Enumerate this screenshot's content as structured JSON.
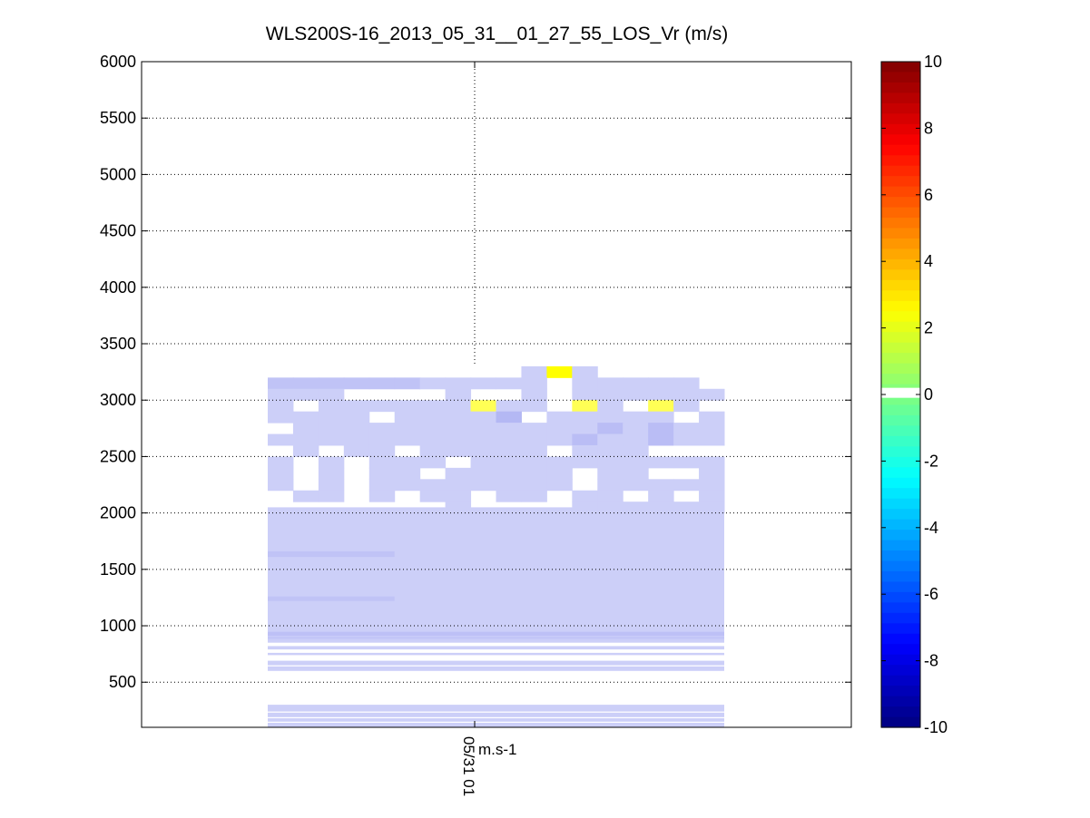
{
  "chart_data": {
    "type": "heatmap",
    "title": "WLS200S-16_2013_05_31__01_27_55_LOS_Vr (m/s)",
    "xlabel": "",
    "ylabel": "",
    "x_tick_label": "05/31 01",
    "unit_label": "m.s-1",
    "ylim": [
      100,
      6000
    ],
    "yticks": [
      500,
      1000,
      1500,
      2000,
      2500,
      3000,
      3500,
      4000,
      4500,
      5000,
      5500,
      6000
    ],
    "grid": true,
    "colorbar": {
      "min": -10,
      "max": 10,
      "ticks": [
        10,
        8,
        6,
        4,
        2,
        0,
        -2,
        -4,
        -6,
        -8,
        -10
      ],
      "colormap": "jet"
    },
    "profile_columns": 18,
    "range_gates": [
      {
        "height": 3250,
        "values": [
          null,
          null,
          null,
          null,
          null,
          null,
          null,
          null,
          null,
          null,
          -0.4,
          1.5,
          -0.4,
          null,
          null,
          null,
          null,
          null
        ]
      },
      {
        "height": 3150,
        "values": [
          -0.8,
          -0.8,
          -0.8,
          -0.8,
          -0.8,
          -0.8,
          -0.4,
          -0.4,
          -0.4,
          -0.4,
          -0.4,
          null,
          -0.4,
          -0.4,
          -0.4,
          -0.4,
          -0.4,
          null
        ]
      },
      {
        "height": 3050,
        "values": [
          -0.4,
          -0.4,
          -0.4,
          null,
          null,
          null,
          null,
          -0.4,
          null,
          null,
          -0.4,
          null,
          -0.4,
          -0.4,
          -0.4,
          -0.4,
          -0.4,
          -0.4
        ]
      },
      {
        "height": 2950,
        "values": [
          -0.4,
          null,
          -0.4,
          -0.4,
          -0.4,
          -0.4,
          -0.4,
          -0.4,
          1.0,
          -0.4,
          -0.4,
          null,
          1.0,
          -0.4,
          null,
          1.0,
          -0.4,
          null
        ]
      },
      {
        "height": 2850,
        "values": [
          -0.4,
          -0.4,
          -0.4,
          -0.4,
          null,
          -0.4,
          -0.4,
          -0.4,
          -0.4,
          -1.2,
          null,
          -0.4,
          -0.4,
          -0.4,
          -0.4,
          -0.4,
          null,
          -0.4
        ]
      },
      {
        "height": 2750,
        "values": [
          null,
          -0.4,
          -0.4,
          -0.4,
          -0.4,
          -0.4,
          -0.4,
          -0.4,
          -0.4,
          -0.4,
          -0.4,
          -0.4,
          -0.4,
          -1.0,
          -0.4,
          -1.0,
          -0.4,
          -0.4
        ]
      },
      {
        "height": 2650,
        "values": [
          -0.4,
          -0.4,
          -0.4,
          -0.4,
          -0.4,
          -0.4,
          -0.4,
          -0.4,
          -0.4,
          -0.4,
          -0.4,
          -0.4,
          -1.0,
          -0.4,
          -0.4,
          -1.0,
          -0.4,
          -0.4
        ]
      },
      {
        "height": 2550,
        "values": [
          null,
          -0.4,
          null,
          -0.4,
          -0.4,
          null,
          -0.4,
          -0.4,
          -0.4,
          -0.4,
          -0.4,
          null,
          -0.4,
          -0.4,
          -0.4,
          null,
          null,
          null
        ]
      },
      {
        "height": 2450,
        "values": [
          -0.4,
          null,
          -0.4,
          null,
          -0.4,
          -0.4,
          -0.4,
          null,
          -0.4,
          -0.4,
          -0.4,
          -0.4,
          -0.4,
          -0.4,
          -0.4,
          -0.4,
          -0.4,
          -0.4
        ]
      },
      {
        "height": 2350,
        "values": [
          -0.4,
          null,
          -0.4,
          null,
          -0.4,
          -0.4,
          null,
          -0.4,
          -0.4,
          -0.4,
          -0.4,
          -0.4,
          null,
          -0.4,
          -0.4,
          null,
          null,
          -0.4
        ]
      },
      {
        "height": 2250,
        "values": [
          -0.4,
          null,
          -0.4,
          null,
          -0.4,
          -0.4,
          -0.4,
          -0.4,
          -0.4,
          -0.4,
          -0.4,
          -0.4,
          null,
          -0.4,
          -0.4,
          -0.4,
          -0.4,
          -0.4
        ]
      },
      {
        "height": 2150,
        "values": [
          null,
          -0.4,
          -0.4,
          null,
          -0.4,
          null,
          -0.4,
          -0.4,
          null,
          -0.4,
          -0.4,
          null,
          -0.4,
          -0.4,
          null,
          -0.4,
          null,
          -0.4
        ]
      },
      {
        "height": 2050,
        "values": [
          null,
          null,
          null,
          null,
          null,
          null,
          null,
          -0.4,
          null,
          null,
          null,
          null,
          -0.4,
          -0.4,
          -0.4,
          -0.4,
          -0.4,
          -0.4
        ]
      }
    ],
    "lower_region": {
      "from_height": 950,
      "to_height": 2050,
      "base_value": -0.4
    }
  }
}
